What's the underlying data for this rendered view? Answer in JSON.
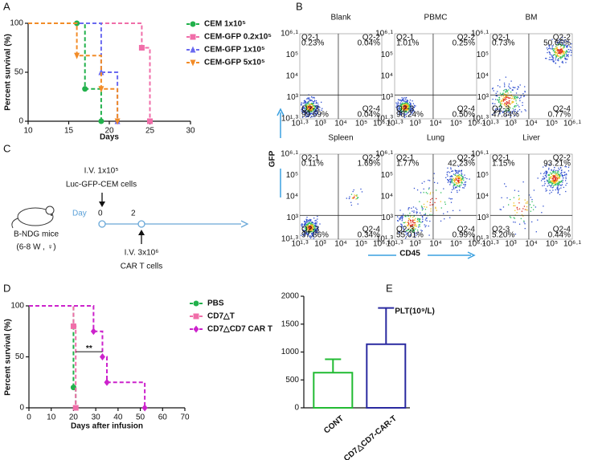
{
  "panels": [
    "A",
    "B",
    "C",
    "D",
    "E"
  ],
  "chart_data": [
    {
      "type": "step",
      "xlabel": "Days",
      "ylabel": "Percent survival (%)",
      "xlim": [
        10,
        30
      ],
      "xticks": [
        10,
        15,
        20,
        25,
        30
      ],
      "ylim": [
        0,
        100
      ],
      "yticks": [
        0,
        50,
        100
      ],
      "series": [
        {
          "name": "CEM 1x10⁵",
          "color": "#22b14c",
          "marker": "circle",
          "x": [
            10,
            16,
            17,
            19
          ],
          "values": [
            100,
            100,
            33,
            0
          ]
        },
        {
          "name": "CEM-GFP 0.2x10⁵",
          "color": "#f06ea9",
          "marker": "square",
          "x": [
            10,
            24,
            25
          ],
          "values": [
            100,
            75,
            0
          ]
        },
        {
          "name": "CEM-GFP 1x10⁵",
          "color": "#6a6af0",
          "marker": "triangle",
          "x": [
            10,
            19,
            21
          ],
          "values": [
            100,
            50,
            0
          ]
        },
        {
          "name": "CEM-GFP 5x10⁵",
          "color": "#f28c28",
          "marker": "triangle-down",
          "x": [
            10,
            16,
            19,
            21
          ],
          "values": [
            100,
            67,
            33,
            0
          ]
        }
      ]
    },
    {
      "type": "step",
      "xlabel": "Days after infusion",
      "ylabel": "Percent survival (%)",
      "xlim": [
        0,
        70
      ],
      "xticks": [
        0,
        10,
        20,
        30,
        40,
        50,
        60,
        70
      ],
      "ylim": [
        0,
        100
      ],
      "yticks": [
        0,
        50,
        100
      ],
      "annotation": "**",
      "series": [
        {
          "name": "PBS",
          "color": "#22b14c",
          "marker": "circle",
          "x": [
            0,
            20,
            21
          ],
          "values": [
            100,
            20,
            0
          ]
        },
        {
          "name": "CD7△T",
          "color": "#f06ea9",
          "marker": "square",
          "x": [
            0,
            20,
            21
          ],
          "values": [
            100,
            80,
            0
          ]
        },
        {
          "name": "CD7△CD7 CAR T",
          "color": "#cc22cc",
          "marker": "diamond",
          "x": [
            0,
            29,
            33,
            35,
            52
          ],
          "values": [
            100,
            75,
            50,
            25,
            0
          ]
        }
      ]
    },
    {
      "type": "bar",
      "title": "PLT(10⁹/L)",
      "categories": [
        "CONT",
        "CD7△CD7-CAR-T"
      ],
      "values": [
        630,
        1140
      ],
      "errors": [
        240,
        650
      ],
      "colors": [
        "#22bb33",
        "#2a2aa0"
      ],
      "ylim": [
        0,
        2000
      ],
      "yticks": [
        0,
        500,
        1000,
        1500,
        2000
      ]
    }
  ],
  "flow": {
    "axis_y": "GFP",
    "axis_x": "CD45",
    "x_ticks": [
      "10¹·³",
      "10³",
      "10⁴",
      "10⁵",
      "10⁶·¹"
    ],
    "y_ticks": [
      "10¹·³",
      "10³",
      "10⁴",
      "10⁵",
      "10⁶·¹"
    ],
    "plots": [
      {
        "title": "Blank",
        "quadrants": [
          {
            "name": "Q2-1",
            "value": "0.23%"
          },
          {
            "name": "Q2-2",
            "value": "0.04%"
          },
          {
            "name": "Q2-3",
            "value": "99.69%"
          },
          {
            "name": "Q2-4",
            "value": "0.04%"
          }
        ]
      },
      {
        "title": "PBMC",
        "quadrants": [
          {
            "name": "Q2-1",
            "value": "1.01%"
          },
          {
            "name": "Q2-2",
            "value": "0.25%"
          },
          {
            "name": "Q2-3",
            "value": "98.24%"
          },
          {
            "name": "Q2-4",
            "value": "0.50%"
          }
        ]
      },
      {
        "title": "BM",
        "quadrants": [
          {
            "name": "Q2-1",
            "value": "0.73%"
          },
          {
            "name": "Q2-2",
            "value": "50.66%"
          },
          {
            "name": "Q2-3",
            "value": "47.84%"
          },
          {
            "name": "Q2-4",
            "value": "0.77%"
          }
        ]
      },
      {
        "title": "Spleen",
        "quadrants": [
          {
            "name": "Q2-1",
            "value": "0.11%"
          },
          {
            "name": "Q2-2",
            "value": "1.69%"
          },
          {
            "name": "Q2-3",
            "value": "97.86%"
          },
          {
            "name": "Q2-4",
            "value": "0.34%"
          }
        ]
      },
      {
        "title": "Lung",
        "quadrants": [
          {
            "name": "Q2-1",
            "value": "1.77%"
          },
          {
            "name": "Q2-2",
            "value": "42.23%"
          },
          {
            "name": "Q2-3",
            "value": "55.01%"
          },
          {
            "name": "Q2-4",
            "value": "0.99%"
          }
        ]
      },
      {
        "title": "Liver",
        "quadrants": [
          {
            "name": "Q2-1",
            "value": "1.15%"
          },
          {
            "name": "Q2-2",
            "value": "93.21%"
          },
          {
            "name": "Q2-3",
            "value": "5.20%"
          },
          {
            "name": "Q2-4",
            "value": "0.44%"
          }
        ]
      }
    ]
  },
  "schematic": {
    "mice": "B-NDG mice",
    "mice_detail": "(6-8 W , ♀)",
    "injection_1": "I.V. 1x10⁵",
    "injection_1_cells": "Luc-GFP-CEM cells",
    "day_label": "Day",
    "day_0": "0",
    "day_2": "2",
    "injection_2": "I.V. 3x10⁶",
    "injection_2_cells": "CAR T cells"
  }
}
